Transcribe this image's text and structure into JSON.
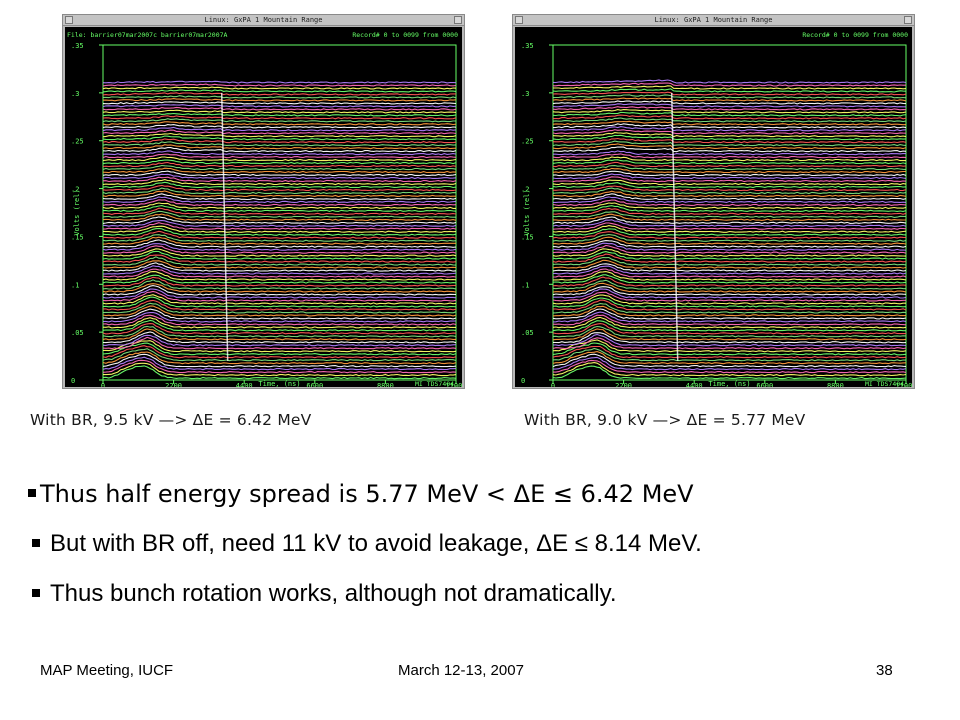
{
  "panels": [
    {
      "window_title": "Linux: GxPA 1   Mountain Range",
      "file_line": "File: barrier07mar2007c   barrier07mar2007A",
      "record_line": "Record# 0 to 0099 from 0000",
      "y_axis_label": "Volts (rel)",
      "x_axis_label": "Time, (ns)",
      "instrument": "MI TDS7404;",
      "caption": "With BR, 9.5 kV —>  ΔE = 6.42 MeV"
    },
    {
      "window_title": "Linux: GxPA 1   Mountain Range",
      "file_line": "",
      "record_line": "Record# 0 to 0099 from 0000",
      "y_axis_label": "Volts (rel)",
      "x_axis_label": "Time, (ns)",
      "instrument": "MI TDS7404;",
      "caption": "With BR, 9.0 kV —>  ΔE = 5.77 MeV"
    }
  ],
  "chart_data": [
    {
      "type": "line",
      "title": "Mountain Range",
      "xlabel": "Time, (ns)",
      "ylabel": "Volts (rel)",
      "xlim": [
        0,
        11000
      ],
      "ylim": [
        0,
        0.35
      ],
      "x_ticks": [
        "0",
        "2200",
        "4400",
        "6600",
        "8800",
        "11000"
      ],
      "y_ticks": [
        "0",
        ".05",
        ".1",
        ".15",
        ".2",
        ".25",
        ".3",
        ".35"
      ],
      "trace_count": 100,
      "bunch_end_ns": 3700,
      "grid": false,
      "background": "#000000"
    },
    {
      "type": "line",
      "title": "Mountain Range",
      "xlabel": "Time, (ns)",
      "ylabel": "Volts (rel)",
      "xlim": [
        0,
        11000
      ],
      "ylim": [
        0,
        0.35
      ],
      "x_ticks": [
        "0",
        "2200",
        "4400",
        "6600",
        "8800",
        "11000"
      ],
      "y_ticks": [
        "0",
        ".05",
        ".1",
        ".15",
        ".2",
        ".25",
        ".3",
        ".35"
      ],
      "trace_count": 100,
      "bunch_end_ns": 3700,
      "grid": false,
      "background": "#000000"
    }
  ],
  "bullets": [
    "Thus half energy spread is  5.77 MeV < ΔE ≤ 6.42 MeV",
    "But with BR off, need 11 kV to avoid leakage, ΔE ≤ 8.14 MeV.",
    "Thus bunch rotation works, although not dramatically."
  ],
  "footer": {
    "left": "MAP Meeting, IUCF",
    "center": "March 12-13, 2007",
    "page": "38"
  },
  "colors": {
    "trace_palette": [
      "#6dff6d",
      "#ffff66",
      "#ff6ab8",
      "#b07cff",
      "#ffffff",
      "#ff9a3c",
      "#7be07b",
      "#ff5555"
    ],
    "scope_text": "#66ff66",
    "scope_bg": "#000000"
  }
}
